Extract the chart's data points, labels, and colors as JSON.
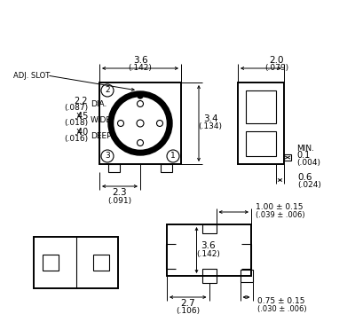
{
  "bg_color": "#ffffff",
  "line_color": "#000000",
  "annotations": {
    "adj_slot": "ADJ. SLOT",
    "dia": "DIA.",
    "wide": "WIDE",
    "deep": "DEEP",
    "dim_22": "2.2",
    "dim_22_in": "(.087)",
    "dim_45": ".45",
    "dim_45_in": "(.018)",
    "dim_40": ".40",
    "dim_40_in": "(.016)",
    "dim_36_top": "3.6",
    "dim_36_top_in": "(.142)",
    "dim_34": "3.4",
    "dim_34_in": "(.134)",
    "dim_23": "2.3",
    "dim_23_in": "(.091)",
    "dim_20": "2.0",
    "dim_20_in": "(.079)",
    "dim_06": "0.6",
    "dim_06_in": "(.024)",
    "dim_01": "0.1",
    "dim_01_in": "(.004)",
    "min_label": "MIN.",
    "dim_100": "1.00 ± 0.15",
    "dim_100_in": "(.039 ± .006)",
    "dim_36_bot": "3.6",
    "dim_36_bot_in": "(.142)",
    "dim_27": "2.7",
    "dim_27_in": "(.106)",
    "dim_075": "0.75 ± 0.15",
    "dim_075_in": "(.030 ± .006)",
    "num1": "1",
    "num2": "2",
    "num3": "3"
  }
}
